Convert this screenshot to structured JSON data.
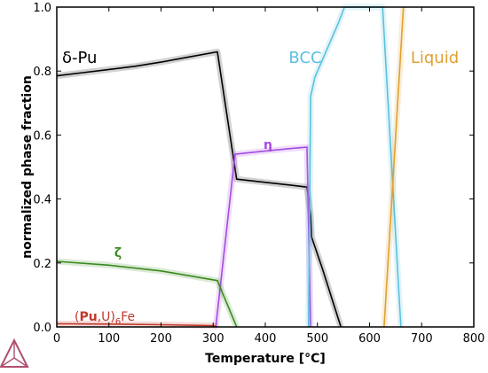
{
  "chart_data": {
    "type": "line",
    "title": "",
    "xlabel": "Temperature [°C]",
    "ylabel": "normalized phase fraction",
    "xlim": [
      0,
      800
    ],
    "ylim": [
      0,
      1.0
    ],
    "x_ticks": [
      "0",
      "100",
      "200",
      "300",
      "400",
      "500",
      "600",
      "700",
      "800"
    ],
    "y_ticks": [
      "0.0",
      "0.2",
      "0.4",
      "0.6",
      "0.8",
      "1.0"
    ],
    "grid": false,
    "logo": "thermo-calc-triangle-logo",
    "series": [
      {
        "name": "δ-Pu",
        "color": "#000000",
        "points": [
          [
            0,
            0.785
          ],
          [
            50,
            0.795
          ],
          [
            100,
            0.805
          ],
          [
            150,
            0.815
          ],
          [
            200,
            0.828
          ],
          [
            250,
            0.843
          ],
          [
            308,
            0.86
          ],
          [
            345,
            0.462
          ],
          [
            400,
            0.452
          ],
          [
            450,
            0.443
          ],
          [
            480,
            0.437
          ],
          [
            487,
            0.35
          ],
          [
            489,
            0.28
          ],
          [
            510,
            0.18
          ],
          [
            545,
            0.0
          ]
        ]
      },
      {
        "name": "η",
        "color": "#a54be0",
        "points": [
          [
            305,
            0.0
          ],
          [
            342,
            0.54
          ],
          [
            400,
            0.55
          ],
          [
            450,
            0.558
          ],
          [
            480,
            0.562
          ],
          [
            487,
            0.0
          ]
        ]
      },
      {
        "name": "ζ",
        "color": "#3a8a1e",
        "points": [
          [
            0,
            0.205
          ],
          [
            100,
            0.193
          ],
          [
            200,
            0.175
          ],
          [
            308,
            0.145
          ],
          [
            345,
            0.0
          ]
        ]
      },
      {
        "name": "(Pu,U)6Fe",
        "label_parts": [
          "(",
          "Pu",
          ",U)",
          "6",
          "Fe"
        ],
        "color": "#c0392b",
        "points": [
          [
            0,
            0.01
          ],
          [
            100,
            0.009
          ],
          [
            200,
            0.007
          ],
          [
            300,
            0.004
          ],
          [
            308,
            0.0
          ]
        ]
      },
      {
        "name": "BCC",
        "color": "#5bc0de",
        "points": [
          [
            483,
            0.0
          ],
          [
            487,
            0.72
          ],
          [
            495,
            0.78
          ],
          [
            540,
            0.95
          ],
          [
            552,
            1.0
          ],
          [
            625,
            1.0
          ],
          [
            660,
            0.0
          ]
        ]
      },
      {
        "name": "Liquid",
        "color": "#e0a030",
        "points": [
          [
            628,
            0.0
          ],
          [
            665,
            1.0
          ]
        ]
      }
    ]
  }
}
